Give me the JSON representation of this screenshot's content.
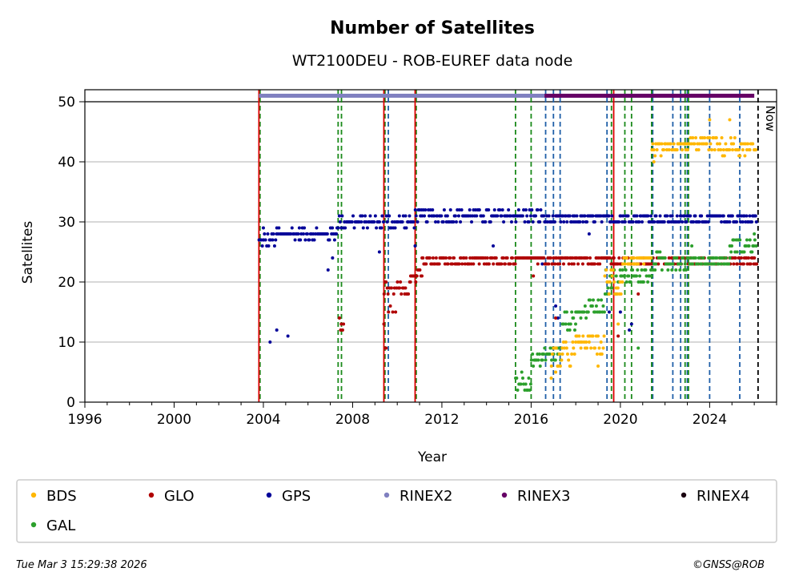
{
  "chart_data": {
    "type": "scatter",
    "title": "Number of Satellites",
    "subtitle": "WT2100DEU - ROB-EUREF data node",
    "xlabel": "Year",
    "ylabel": "Satellites",
    "xlim": [
      1996,
      2027
    ],
    "ylim": [
      0,
      52
    ],
    "x_ticks": [
      1996,
      2000,
      2004,
      2008,
      2012,
      2016,
      2020,
      2024
    ],
    "y_ticks": [
      0,
      10,
      20,
      30,
      40,
      50
    ],
    "now_label": "Now",
    "now_x": 2026.17,
    "legend": [
      {
        "name": "BDS",
        "color": "#ffb700"
      },
      {
        "name": "GLO",
        "color": "#b00000"
      },
      {
        "name": "GPS",
        "color": "#000099"
      },
      {
        "name": "RINEX2",
        "color": "#8080c0"
      },
      {
        "name": "RINEX3",
        "color": "#660066"
      },
      {
        "name": "RINEX4",
        "color": "#1a0010"
      },
      {
        "name": "GAL",
        "color": "#2ca02c"
      }
    ],
    "rinex_bars": [
      {
        "name": "RINEX2",
        "y": 51,
        "x_start": 2003.8,
        "x_end": 2016.7,
        "color": "#8080c0"
      },
      {
        "name": "RINEX3",
        "y": 51,
        "x_start": 2016.6,
        "x_end": 2026.0,
        "color": "#660066"
      }
    ],
    "event_lines": {
      "red": [
        2003.8,
        2009.4,
        2010.8,
        2019.7
      ],
      "green_dashed": [
        2003.85,
        2007.35,
        2007.5,
        2009.45,
        2010.85,
        2015.3,
        2016.0,
        2019.6,
        2020.2,
        2020.5,
        2021.4,
        2022.9,
        2023.05
      ],
      "blue_dashed": [
        2009.6,
        2016.65,
        2017.0,
        2017.3,
        2019.4,
        2021.45,
        2022.35,
        2022.7,
        2023.0,
        2024.0,
        2025.35
      ],
      "black_dashed": [
        2026.17
      ]
    },
    "series": [
      {
        "name": "GPS",
        "color": "#000099",
        "segments": [
          {
            "x0": 2003.8,
            "x1": 2004.0,
            "base": 27,
            "amp": 1
          },
          {
            "x0": 2004.0,
            "x1": 2004.6,
            "base": 27,
            "amp": 1
          },
          {
            "x0": 2004.6,
            "x1": 2005.6,
            "base": 28,
            "amp": 1
          },
          {
            "x0": 2005.6,
            "x1": 2007.3,
            "base": 28,
            "amp": 1
          },
          {
            "x0": 2007.3,
            "x1": 2008.6,
            "base": 30,
            "amp": 1
          },
          {
            "x0": 2008.6,
            "x1": 2009.4,
            "base": 30,
            "amp": 1
          },
          {
            "x0": 2009.5,
            "x1": 2010.8,
            "base": 30,
            "amp": 1
          },
          {
            "x0": 2010.8,
            "x1": 2016.6,
            "base": 31,
            "amp": 1
          },
          {
            "x0": 2016.6,
            "x1": 2026.1,
            "base": 30.5,
            "amp": 1
          }
        ],
        "outliers": [
          [
            2004.3,
            10
          ],
          [
            2004.6,
            12
          ],
          [
            2005.1,
            11
          ],
          [
            2004.0,
            29
          ],
          [
            2006.9,
            22
          ],
          [
            2007.1,
            24
          ],
          [
            2009.2,
            25
          ],
          [
            2010.8,
            26
          ],
          [
            2014.3,
            26
          ],
          [
            2016.5,
            23
          ],
          [
            2017.1,
            16
          ],
          [
            2017.2,
            14
          ],
          [
            2018.6,
            28
          ],
          [
            2019.5,
            15
          ],
          [
            2020.0,
            15
          ],
          [
            2020.5,
            13
          ],
          [
            2020.4,
            12
          ]
        ]
      },
      {
        "name": "GLO",
        "color": "#b00000",
        "segments": [
          {
            "x0": 2007.4,
            "x1": 2007.6,
            "base": 12.5,
            "amp": 1.5
          },
          {
            "x0": 2009.4,
            "x1": 2009.6,
            "base": 19,
            "amp": 2
          },
          {
            "x0": 2009.6,
            "x1": 2010.0,
            "base": 17,
            "amp": 2
          },
          {
            "x0": 2010.0,
            "x1": 2010.6,
            "base": 19.5,
            "amp": 1.5
          },
          {
            "x0": 2010.6,
            "x1": 2011.1,
            "base": 21,
            "amp": 1
          },
          {
            "x0": 2011.1,
            "x1": 2015.3,
            "base": 23.5,
            "amp": 0.5
          },
          {
            "x0": 2015.3,
            "x1": 2016.6,
            "base": 24,
            "amp": 0.5
          },
          {
            "x0": 2016.6,
            "x1": 2026.1,
            "base": 23.5,
            "amp": 0.5
          }
        ],
        "outliers": [
          [
            2016.1,
            21
          ],
          [
            2016.3,
            23
          ],
          [
            2019.9,
            11
          ],
          [
            2020.8,
            18
          ],
          [
            2009.4,
            13
          ],
          [
            2009.5,
            9
          ],
          [
            2017.1,
            14
          ]
        ]
      },
      {
        "name": "GAL",
        "color": "#2ca02c",
        "segments": [
          {
            "x0": 2015.3,
            "x1": 2016.0,
            "base": 3.5,
            "amp": 1.5
          },
          {
            "x0": 2016.0,
            "x1": 2016.5,
            "base": 7,
            "amp": 1
          },
          {
            "x0": 2016.5,
            "x1": 2017.4,
            "base": 8,
            "amp": 1
          },
          {
            "x0": 2017.4,
            "x1": 2018.0,
            "base": 13.5,
            "amp": 1.5
          },
          {
            "x0": 2018.0,
            "x1": 2018.5,
            "base": 15,
            "amp": 1
          },
          {
            "x0": 2018.5,
            "x1": 2019.3,
            "base": 16,
            "amp": 1.5
          },
          {
            "x0": 2019.3,
            "x1": 2020.0,
            "base": 20,
            "amp": 2
          },
          {
            "x0": 2020.0,
            "x1": 2021.4,
            "base": 21,
            "amp": 1
          },
          {
            "x0": 2021.4,
            "x1": 2023.0,
            "base": 23.5,
            "amp": 1.5
          },
          {
            "x0": 2023.0,
            "x1": 2024.9,
            "base": 23.5,
            "amp": 1
          },
          {
            "x0": 2024.9,
            "x1": 2026.1,
            "base": 26,
            "amp": 1.5
          }
        ],
        "outliers": [
          [
            2020.8,
            9
          ],
          [
            2023.2,
            26
          ],
          [
            2026.0,
            28
          ]
        ]
      },
      {
        "name": "BDS",
        "color": "#ffb700",
        "segments": [
          {
            "x0": 2016.9,
            "x1": 2017.4,
            "base": 7.5,
            "amp": 2
          },
          {
            "x0": 2017.4,
            "x1": 2018.0,
            "base": 8,
            "amp": 2
          },
          {
            "x0": 2018.0,
            "x1": 2018.9,
            "base": 10,
            "amp": 1.5
          },
          {
            "x0": 2018.9,
            "x1": 2019.3,
            "base": 9.5,
            "amp": 2
          },
          {
            "x0": 2019.3,
            "x1": 2020.1,
            "base": 20,
            "amp": 3
          },
          {
            "x0": 2020.1,
            "x1": 2021.4,
            "base": 23.5,
            "amp": 0.5
          },
          {
            "x0": 2021.4,
            "x1": 2022.3,
            "base": 42,
            "amp": 1
          },
          {
            "x0": 2022.3,
            "x1": 2023.0,
            "base": 42.5,
            "amp": 1
          },
          {
            "x0": 2023.0,
            "x1": 2024.3,
            "base": 43,
            "amp": 1
          },
          {
            "x0": 2024.3,
            "x1": 2025.3,
            "base": 42.5,
            "amp": 1.5
          },
          {
            "x0": 2025.3,
            "x1": 2026.1,
            "base": 42,
            "amp": 1
          }
        ],
        "outliers": [
          [
            2024.0,
            47
          ],
          [
            2024.9,
            47
          ],
          [
            2016.9,
            4
          ],
          [
            2017.1,
            5
          ],
          [
            2019.0,
            6
          ],
          [
            2019.9,
            13
          ],
          [
            2021.5,
            40
          ]
        ]
      }
    ]
  },
  "footer": {
    "timestamp": "Tue Mar  3 15:29:38 2026",
    "credit": "©GNSS@ROB"
  }
}
